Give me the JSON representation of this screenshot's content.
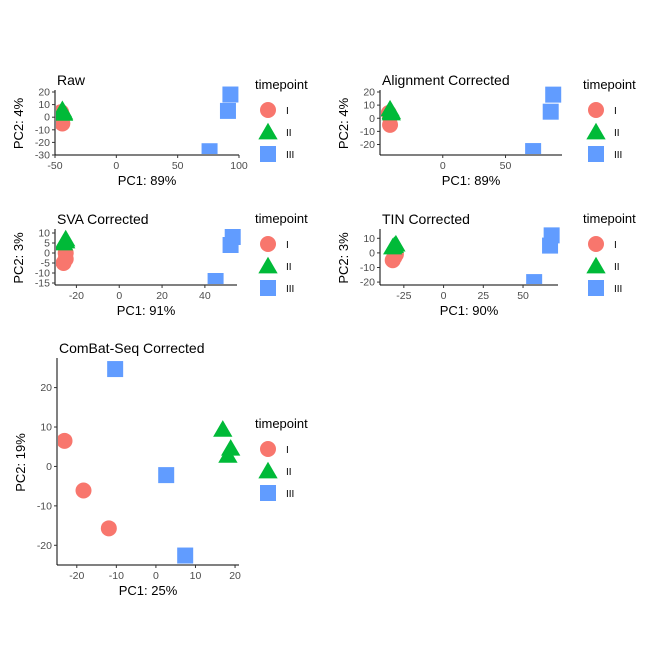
{
  "legend_title": "timepoint",
  "legend_items": [
    {
      "label": "I",
      "shape": "circle",
      "color": "#F8766D"
    },
    {
      "label": "II",
      "shape": "triangle",
      "color": "#00BA38"
    },
    {
      "label": "III",
      "shape": "square",
      "color": "#619CFF"
    }
  ],
  "chart_data": [
    {
      "type": "scatter",
      "title": "Raw",
      "xlabel": "PC1: 89%",
      "ylabel": "PC2: 4%",
      "xlim": [
        -50,
        100
      ],
      "ylim": [
        -30,
        20
      ],
      "xticks": [
        -50,
        0,
        50,
        100
      ],
      "yticks": [
        -30,
        -20,
        -10,
        0,
        10,
        20
      ],
      "series": [
        {
          "name": "I",
          "points": [
            [
              -45,
              4
            ],
            [
              -44,
              1
            ],
            [
              -44,
              -5
            ]
          ]
        },
        {
          "name": "II",
          "points": [
            [
              -44,
              6
            ],
            [
              -43,
              4
            ],
            [
              -43,
              3
            ]
          ]
        },
        {
          "name": "III",
          "points": [
            [
              93,
              18
            ],
            [
              91,
              5
            ],
            [
              76,
              -27
            ]
          ]
        }
      ]
    },
    {
      "type": "scatter",
      "title": "Alignment Corrected",
      "xlabel": "PC1: 89%",
      "ylabel": "PC2: 4%",
      "xlim": [
        -50,
        95
      ],
      "ylim": [
        -28,
        20
      ],
      "xticks": [
        0,
        50
      ],
      "yticks": [
        -20,
        -10,
        0,
        10,
        20
      ],
      "series": [
        {
          "name": "I",
          "points": [
            [
              -43,
              4
            ],
            [
              -42,
              1
            ],
            [
              -42,
              -5
            ]
          ]
        },
        {
          "name": "II",
          "points": [
            [
              -42,
              7
            ],
            [
              -41,
              5
            ],
            [
              -41,
              4
            ]
          ]
        },
        {
          "name": "III",
          "points": [
            [
              88,
              18
            ],
            [
              86,
              5
            ],
            [
              72,
              -25
            ]
          ]
        }
      ]
    },
    {
      "type": "scatter",
      "title": "SVA Corrected",
      "xlabel": "PC1: 91%",
      "ylabel": "PC2: 3%",
      "xlim": [
        -30,
        55
      ],
      "ylim": [
        -16,
        11
      ],
      "xticks": [
        -20,
        0,
        20,
        40
      ],
      "yticks": [
        -15,
        -10,
        -5,
        0,
        5,
        10
      ],
      "series": [
        {
          "name": "I",
          "points": [
            [
              -25,
              0
            ],
            [
              -25,
              -3
            ],
            [
              -26,
              -5
            ]
          ]
        },
        {
          "name": "II",
          "points": [
            [
              -25,
              7
            ],
            [
              -25,
              6
            ],
            [
              -26,
              5
            ]
          ]
        },
        {
          "name": "III",
          "points": [
            [
              53,
              8
            ],
            [
              52,
              4
            ],
            [
              45,
              -14
            ]
          ]
        }
      ]
    },
    {
      "type": "scatter",
      "title": "TIN Corrected",
      "xlabel": "PC1: 90%",
      "ylabel": "PC2: 3%",
      "xlim": [
        -40,
        72
      ],
      "ylim": [
        -22,
        15
      ],
      "xticks": [
        -25,
        0,
        25,
        50
      ],
      "yticks": [
        -20,
        -10,
        0,
        10
      ],
      "series": [
        {
          "name": "I",
          "points": [
            [
              -30,
              -1
            ],
            [
              -31,
              -3
            ],
            [
              -32,
              -5
            ]
          ]
        },
        {
          "name": "II",
          "points": [
            [
              -30,
              6
            ],
            [
              -31,
              5
            ],
            [
              -32,
              4
            ]
          ]
        },
        {
          "name": "III",
          "points": [
            [
              68,
              12
            ],
            [
              67,
              5
            ],
            [
              57,
              -20
            ]
          ]
        }
      ]
    },
    {
      "type": "scatter",
      "title": "ComBat-Seq Corrected",
      "xlabel": "PC1: 25%",
      "ylabel": "PC2: 19%",
      "xlim": [
        -25,
        21
      ],
      "ylim": [
        -25,
        27
      ],
      "xticks": [
        -20,
        -10,
        0,
        10,
        20
      ],
      "yticks": [
        -20,
        -10,
        0,
        10,
        20
      ],
      "series": [
        {
          "name": "I",
          "points": [
            [
              -23.1,
              6.5
            ],
            [
              -18.3,
              -6.1
            ],
            [
              -11.9,
              -15.7
            ]
          ]
        },
        {
          "name": "II",
          "points": [
            [
              16.9,
              9.4
            ],
            [
              18.9,
              4.6
            ],
            [
              18.2,
              2.8
            ]
          ]
        },
        {
          "name": "III",
          "points": [
            [
              -10.3,
              24.7
            ],
            [
              2.6,
              -2.2
            ],
            [
              7.4,
              -22.6
            ]
          ]
        }
      ]
    }
  ]
}
